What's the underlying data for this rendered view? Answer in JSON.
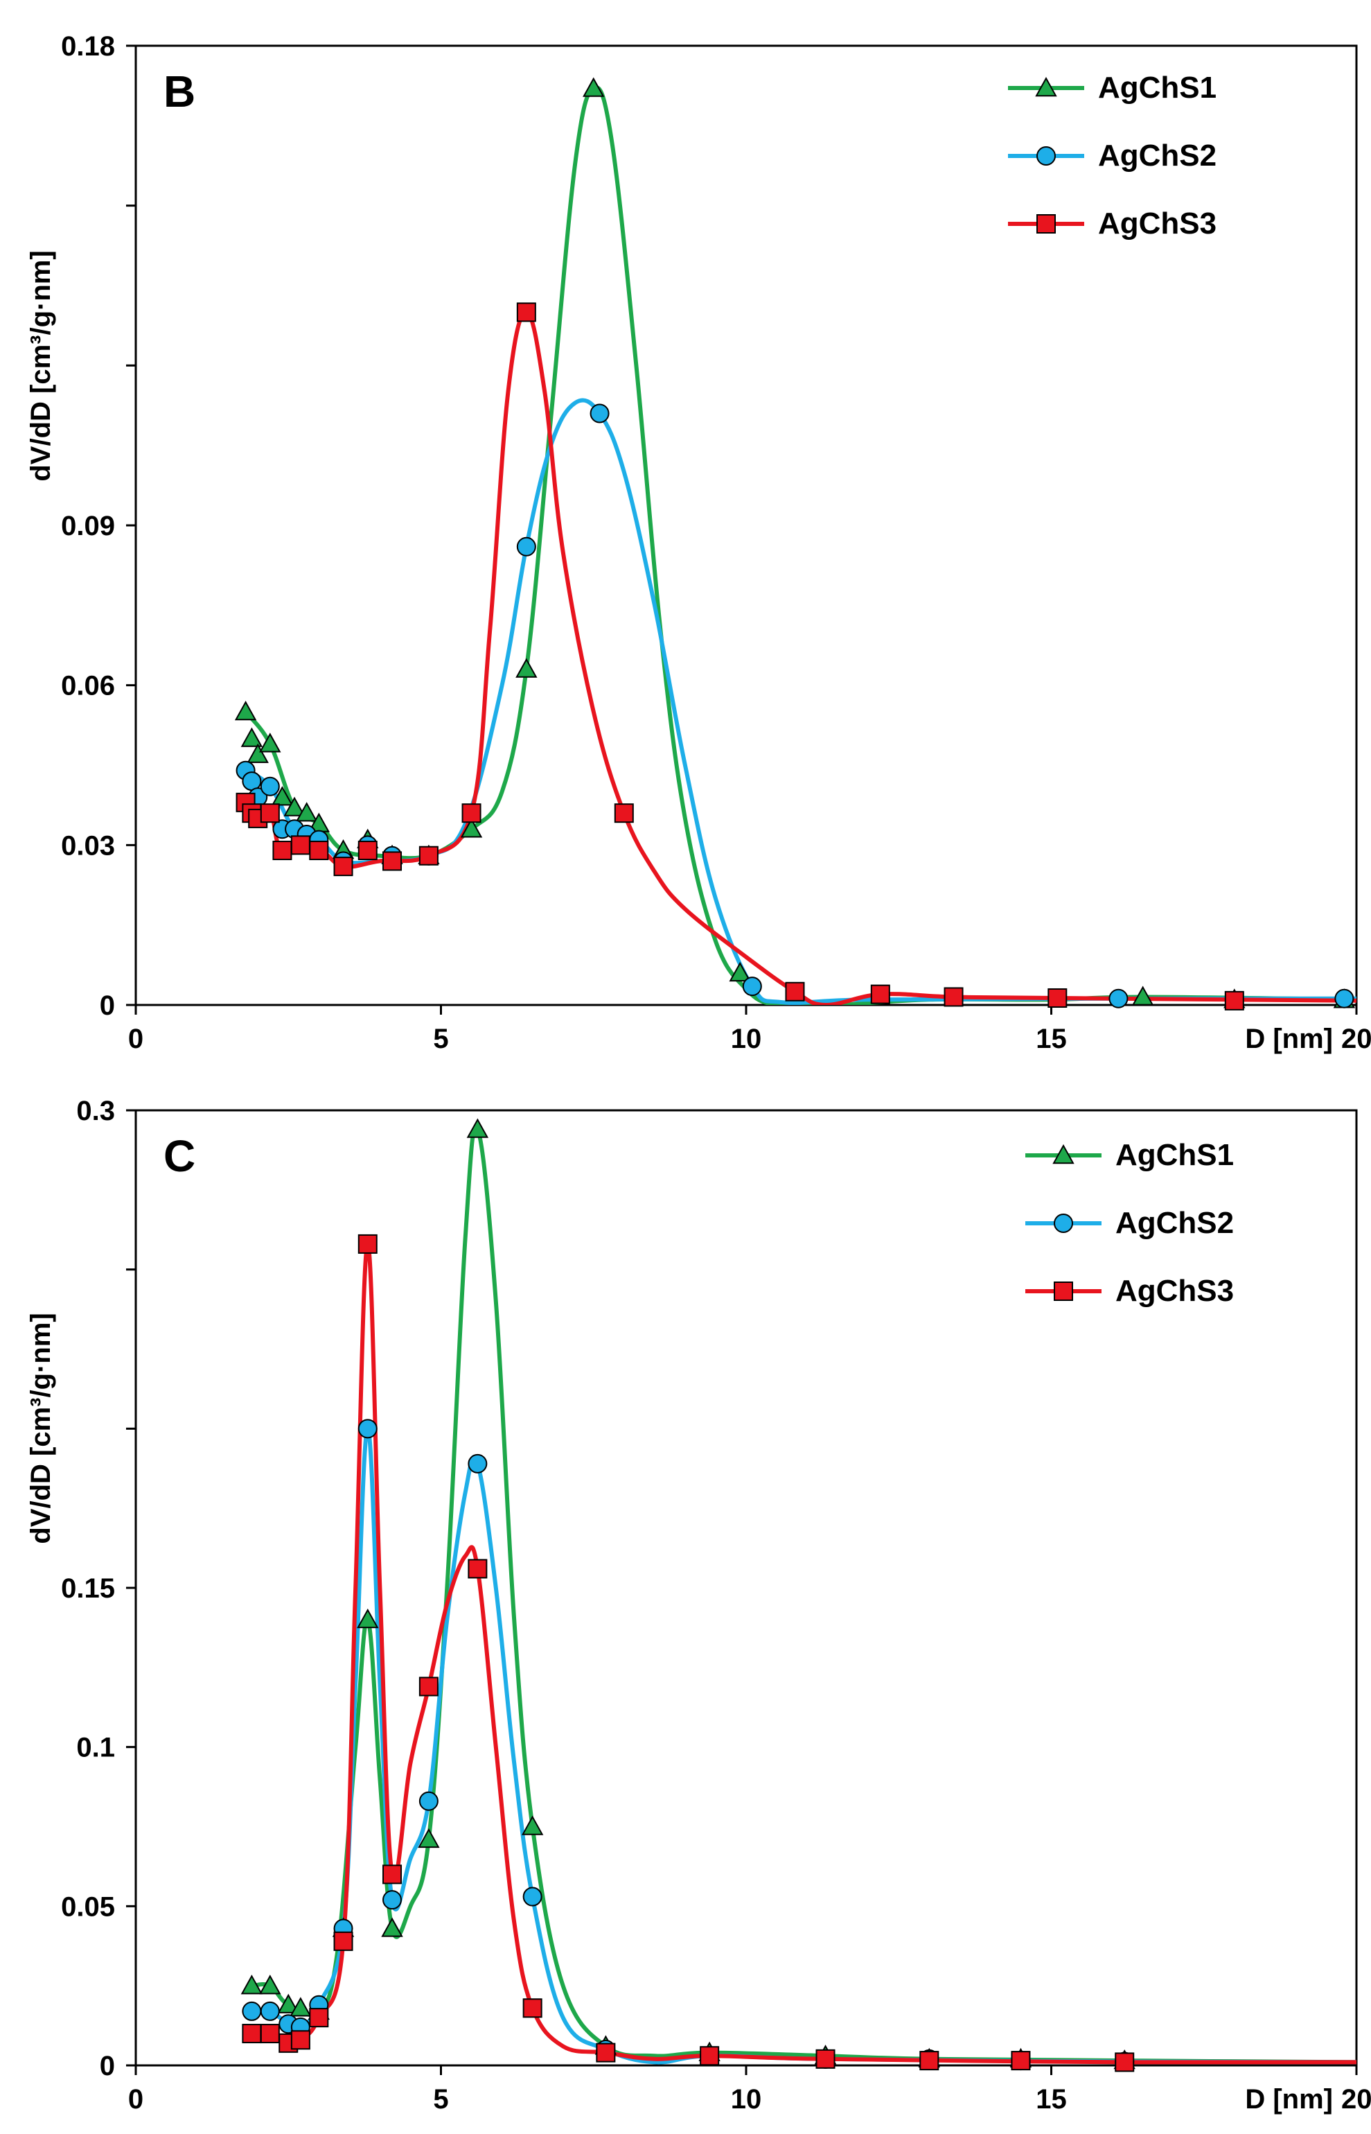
{
  "chart_data": [
    {
      "type": "line",
      "panel_label": "B",
      "xlabel": "D [nm]",
      "ylabel": "dV/dD [cm³/g·nm]",
      "xlim": [
        0,
        20
      ],
      "ylim": [
        0,
        0.18
      ],
      "x_tick_labels": [
        "0",
        "5",
        "10",
        "15",
        "20"
      ],
      "x_ticks": [
        0,
        5,
        10,
        15,
        20
      ],
      "y_tick_labels": [
        "0",
        "0.03",
        "0.06",
        "0.09",
        "",
        "",
        "0.18"
      ],
      "y_ticks": [
        0,
        0.03,
        0.06,
        0.09,
        0.12,
        0.15,
        0.18
      ],
      "legend_position": "top-right",
      "series": [
        {
          "name": "AgChS1",
          "color": "#1ea84a",
          "marker": "triangle",
          "points": [
            [
              1.8,
              0.055
            ],
            [
              1.9,
              0.05
            ],
            [
              2.0,
              0.047
            ],
            [
              2.2,
              0.049
            ],
            [
              2.4,
              0.039
            ],
            [
              2.6,
              0.037
            ],
            [
              2.8,
              0.036
            ],
            [
              3.0,
              0.034
            ],
            [
              3.4,
              0.029
            ],
            [
              3.8,
              0.031
            ],
            [
              4.2,
              0.028
            ],
            [
              4.8,
              0.028
            ],
            [
              5.5,
              0.033
            ],
            [
              6.4,
              0.063
            ],
            [
              7.5,
              0.172
            ],
            [
              9.9,
              0.006
            ],
            [
              16.5,
              0.0015
            ],
            [
              18.0,
              0.001
            ],
            [
              19.8,
              0.001
            ]
          ],
          "curve": [
            [
              1.8,
              0.055
            ],
            [
              2.2,
              0.049
            ],
            [
              2.6,
              0.037
            ],
            [
              3.0,
              0.034
            ],
            [
              3.4,
              0.029
            ],
            [
              4.0,
              0.028
            ],
            [
              4.8,
              0.028
            ],
            [
              5.5,
              0.033
            ],
            [
              6.0,
              0.04
            ],
            [
              6.4,
              0.063
            ],
            [
              6.8,
              0.11
            ],
            [
              7.2,
              0.158
            ],
            [
              7.5,
              0.172
            ],
            [
              7.8,
              0.162
            ],
            [
              8.2,
              0.12
            ],
            [
              8.6,
              0.07
            ],
            [
              9.0,
              0.035
            ],
            [
              9.5,
              0.012
            ],
            [
              10.0,
              0.003
            ],
            [
              10.5,
              0.0
            ],
            [
              11.5,
              0.0
            ],
            [
              13.0,
              0.001
            ],
            [
              15.0,
              0.001
            ],
            [
              16.5,
              0.0015
            ],
            [
              20.0,
              0.001
            ]
          ]
        },
        {
          "name": "AgChS2",
          "color": "#1eaee8",
          "marker": "circle",
          "points": [
            [
              1.8,
              0.044
            ],
            [
              1.9,
              0.042
            ],
            [
              2.0,
              0.039
            ],
            [
              2.2,
              0.041
            ],
            [
              2.4,
              0.033
            ],
            [
              2.6,
              0.033
            ],
            [
              2.8,
              0.032
            ],
            [
              3.0,
              0.031
            ],
            [
              3.4,
              0.027
            ],
            [
              3.8,
              0.03
            ],
            [
              4.2,
              0.028
            ],
            [
              4.8,
              0.028
            ],
            [
              6.4,
              0.086
            ],
            [
              7.6,
              0.111
            ],
            [
              10.1,
              0.0035
            ],
            [
              16.1,
              0.0012
            ],
            [
              19.8,
              0.0012
            ]
          ],
          "curve": [
            [
              1.8,
              0.044
            ],
            [
              2.2,
              0.041
            ],
            [
              2.6,
              0.033
            ],
            [
              3.0,
              0.031
            ],
            [
              3.4,
              0.027
            ],
            [
              4.0,
              0.027
            ],
            [
              4.8,
              0.028
            ],
            [
              5.4,
              0.034
            ],
            [
              6.0,
              0.06
            ],
            [
              6.4,
              0.086
            ],
            [
              6.8,
              0.105
            ],
            [
              7.2,
              0.113
            ],
            [
              7.6,
              0.111
            ],
            [
              8.0,
              0.1
            ],
            [
              8.5,
              0.075
            ],
            [
              9.0,
              0.045
            ],
            [
              9.5,
              0.02
            ],
            [
              10.1,
              0.0035
            ],
            [
              10.6,
              0.0005
            ],
            [
              12.0,
              0.001
            ],
            [
              16.1,
              0.0012
            ],
            [
              20.0,
              0.0012
            ]
          ]
        },
        {
          "name": "AgChS3",
          "color": "#e8141e",
          "marker": "square",
          "points": [
            [
              1.8,
              0.038
            ],
            [
              1.9,
              0.036
            ],
            [
              2.0,
              0.035
            ],
            [
              2.2,
              0.036
            ],
            [
              2.4,
              0.029
            ],
            [
              2.7,
              0.03
            ],
            [
              3.0,
              0.029
            ],
            [
              3.4,
              0.026
            ],
            [
              3.8,
              0.029
            ],
            [
              4.2,
              0.027
            ],
            [
              4.8,
              0.028
            ],
            [
              5.5,
              0.036
            ],
            [
              6.4,
              0.13
            ],
            [
              8.0,
              0.036
            ],
            [
              10.8,
              0.0025
            ],
            [
              12.2,
              0.002
            ],
            [
              13.4,
              0.0015
            ],
            [
              15.1,
              0.0013
            ],
            [
              18.0,
              0.0008
            ]
          ],
          "curve": [
            [
              1.8,
              0.038
            ],
            [
              2.2,
              0.036
            ],
            [
              2.4,
              0.029
            ],
            [
              3.0,
              0.029
            ],
            [
              3.4,
              0.026
            ],
            [
              4.0,
              0.027
            ],
            [
              4.8,
              0.028
            ],
            [
              5.5,
              0.036
            ],
            [
              5.8,
              0.07
            ],
            [
              6.1,
              0.115
            ],
            [
              6.4,
              0.13
            ],
            [
              6.7,
              0.115
            ],
            [
              7.0,
              0.085
            ],
            [
              7.5,
              0.055
            ],
            [
              8.0,
              0.036
            ],
            [
              8.5,
              0.025
            ],
            [
              9.0,
              0.018
            ],
            [
              10.0,
              0.009
            ],
            [
              10.8,
              0.0025
            ],
            [
              11.3,
              0.0
            ],
            [
              12.2,
              0.002
            ],
            [
              13.4,
              0.0015
            ],
            [
              15.1,
              0.0013
            ],
            [
              20.0,
              0.0008
            ]
          ]
        }
      ]
    },
    {
      "type": "line",
      "panel_label": "C",
      "xlabel": "D [nm]",
      "ylabel": "dV/dD [cm³/g·nm]",
      "xlim": [
        0,
        20
      ],
      "ylim": [
        0,
        0.3
      ],
      "x_tick_labels": [
        "0",
        "5",
        "10",
        "15",
        "20"
      ],
      "x_ticks": [
        0,
        5,
        10,
        15,
        20
      ],
      "y_tick_labels": [
        "0",
        "0.05",
        "0.1",
        "0.15",
        "",
        "",
        "0.3"
      ],
      "y_ticks": [
        0,
        0.05,
        0.1,
        0.15,
        0.2,
        0.25,
        0.3
      ],
      "legend_position": "top-right",
      "series": [
        {
          "name": "AgChS1",
          "color": "#1ea84a",
          "marker": "triangle",
          "points": [
            [
              1.9,
              0.025
            ],
            [
              2.2,
              0.025
            ],
            [
              2.5,
              0.019
            ],
            [
              2.7,
              0.018
            ],
            [
              3.0,
              0.017
            ],
            [
              3.4,
              0.043
            ],
            [
              3.8,
              0.14
            ],
            [
              4.2,
              0.043
            ],
            [
              4.8,
              0.071
            ],
            [
              5.6,
              0.294
            ],
            [
              6.5,
              0.075
            ],
            [
              7.7,
              0.006
            ],
            [
              9.4,
              0.004
            ],
            [
              11.3,
              0.003
            ],
            [
              13.0,
              0.002
            ],
            [
              14.5,
              0.002
            ],
            [
              16.2,
              0.0015
            ]
          ],
          "curve": [
            [
              1.9,
              0.025
            ],
            [
              2.2,
              0.025
            ],
            [
              2.5,
              0.019
            ],
            [
              3.0,
              0.017
            ],
            [
              3.3,
              0.035
            ],
            [
              3.6,
              0.1
            ],
            [
              3.8,
              0.14
            ],
            [
              4.0,
              0.09
            ],
            [
              4.2,
              0.043
            ],
            [
              4.5,
              0.05
            ],
            [
              4.8,
              0.071
            ],
            [
              5.1,
              0.15
            ],
            [
              5.4,
              0.26
            ],
            [
              5.6,
              0.294
            ],
            [
              5.9,
              0.24
            ],
            [
              6.2,
              0.14
            ],
            [
              6.5,
              0.075
            ],
            [
              7.0,
              0.025
            ],
            [
              7.7,
              0.006
            ],
            [
              8.5,
              0.003
            ],
            [
              9.4,
              0.004
            ],
            [
              11.3,
              0.003
            ],
            [
              13.0,
              0.002
            ],
            [
              16.2,
              0.0015
            ],
            [
              20.0,
              0.001
            ]
          ]
        },
        {
          "name": "AgChS2",
          "color": "#1eaee8",
          "marker": "circle",
          "points": [
            [
              1.9,
              0.017
            ],
            [
              2.2,
              0.017
            ],
            [
              2.5,
              0.013
            ],
            [
              2.7,
              0.012
            ],
            [
              3.0,
              0.019
            ],
            [
              3.4,
              0.043
            ],
            [
              3.8,
              0.2
            ],
            [
              4.2,
              0.052
            ],
            [
              4.8,
              0.083
            ],
            [
              5.6,
              0.189
            ],
            [
              6.5,
              0.053
            ],
            [
              7.7,
              0.005
            ],
            [
              9.4,
              0.003
            ],
            [
              11.3,
              0.002
            ],
            [
              13.0,
              0.002
            ],
            [
              14.5,
              0.0015
            ],
            [
              16.2,
              0.0012
            ]
          ],
          "curve": [
            [
              1.9,
              0.017
            ],
            [
              2.2,
              0.017
            ],
            [
              2.5,
              0.013
            ],
            [
              2.7,
              0.012
            ],
            [
              3.0,
              0.019
            ],
            [
              3.4,
              0.043
            ],
            [
              3.6,
              0.12
            ],
            [
              3.8,
              0.2
            ],
            [
              4.0,
              0.12
            ],
            [
              4.2,
              0.052
            ],
            [
              4.5,
              0.065
            ],
            [
              4.8,
              0.083
            ],
            [
              5.1,
              0.14
            ],
            [
              5.4,
              0.18
            ],
            [
              5.6,
              0.189
            ],
            [
              5.9,
              0.15
            ],
            [
              6.2,
              0.095
            ],
            [
              6.5,
              0.053
            ],
            [
              7.0,
              0.015
            ],
            [
              7.7,
              0.005
            ],
            [
              8.5,
              0.001
            ],
            [
              9.4,
              0.003
            ],
            [
              11.3,
              0.002
            ],
            [
              16.2,
              0.0012
            ],
            [
              20.0,
              0.001
            ]
          ]
        },
        {
          "name": "AgChS3",
          "color": "#e8141e",
          "marker": "square",
          "points": [
            [
              1.9,
              0.01
            ],
            [
              2.2,
              0.01
            ],
            [
              2.5,
              0.007
            ],
            [
              2.7,
              0.008
            ],
            [
              3.0,
              0.015
            ],
            [
              3.4,
              0.039
            ],
            [
              3.8,
              0.258
            ],
            [
              4.2,
              0.06
            ],
            [
              4.8,
              0.119
            ],
            [
              5.6,
              0.156
            ],
            [
              6.5,
              0.018
            ],
            [
              7.7,
              0.004
            ],
            [
              9.4,
              0.003
            ],
            [
              11.3,
              0.002
            ],
            [
              13.0,
              0.0015
            ],
            [
              14.5,
              0.0015
            ],
            [
              16.2,
              0.001
            ]
          ],
          "curve": [
            [
              1.9,
              0.01
            ],
            [
              2.2,
              0.01
            ],
            [
              2.5,
              0.007
            ],
            [
              2.7,
              0.008
            ],
            [
              3.0,
              0.015
            ],
            [
              3.4,
              0.039
            ],
            [
              3.6,
              0.15
            ],
            [
              3.8,
              0.258
            ],
            [
              4.0,
              0.15
            ],
            [
              4.2,
              0.06
            ],
            [
              4.5,
              0.095
            ],
            [
              4.8,
              0.119
            ],
            [
              5.1,
              0.145
            ],
            [
              5.4,
              0.16
            ],
            [
              5.6,
              0.156
            ],
            [
              5.9,
              0.1
            ],
            [
              6.2,
              0.045
            ],
            [
              6.5,
              0.018
            ],
            [
              7.0,
              0.006
            ],
            [
              7.7,
              0.004
            ],
            [
              8.5,
              0.002
            ],
            [
              9.4,
              0.003
            ],
            [
              11.3,
              0.002
            ],
            [
              16.2,
              0.001
            ],
            [
              20.0,
              0.001
            ]
          ]
        }
      ]
    }
  ]
}
